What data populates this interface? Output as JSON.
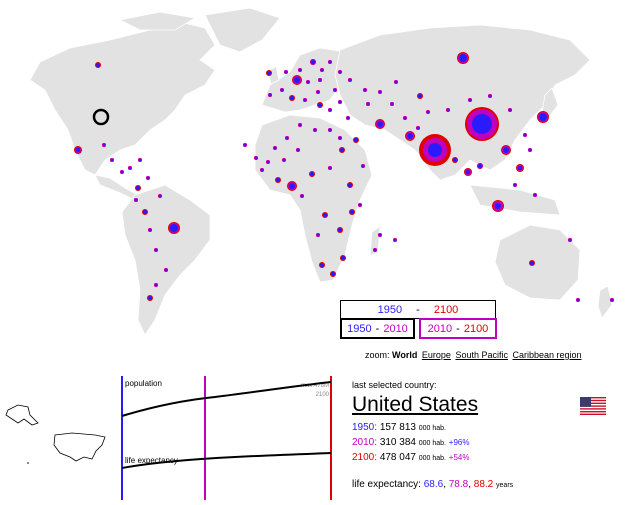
{
  "years": {
    "y1950": "1950",
    "y2010": "2010",
    "y2100": "2100",
    "dash": "-"
  },
  "zoom": {
    "label": "zoom:",
    "options": [
      "World",
      "Europe",
      "South Pacific",
      "Caribbean region"
    ]
  },
  "charts": {
    "population_label": "population",
    "max_label": "max:478M",
    "max_year": "2100",
    "life_label": "life expectancy"
  },
  "info": {
    "last_label": "last selected country:",
    "country": "United States",
    "p1950_year": "1950:",
    "p1950_val": "157 813",
    "p1950_unit": "000 hab.",
    "p2010_year": "2010:",
    "p2010_val": "310 384",
    "p2010_unit": "000 hab.",
    "p2010_change": "+96%",
    "p2100_year": "2100:",
    "p2100_val": "478 047",
    "p2100_unit": "000 hab.",
    "p2100_change": "+54%",
    "le_label": "life expectancy:",
    "le_1950": "68.6",
    "le_2010": "78.8",
    "le_2100": "88.2",
    "le_unit": "years"
  },
  "colors": {
    "c1950": "#2a1bff",
    "c2010": "#c000c0",
    "c2100": "#e00000",
    "land": "#e0e0e0"
  },
  "icons": {
    "flag": "us-flag-icon"
  }
}
